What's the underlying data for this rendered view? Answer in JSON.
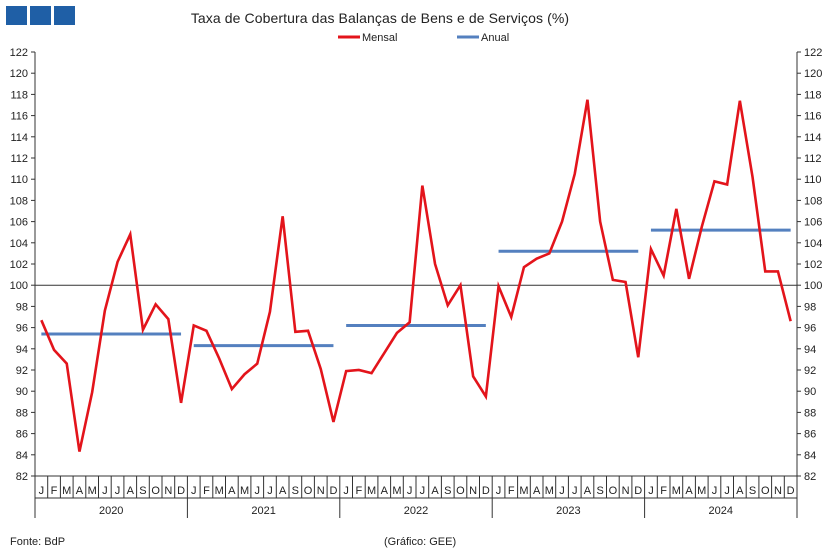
{
  "title": "Taxa de Cobertura das Balanças de Bens e de Serviços (%)",
  "source": "Fonte: BdP",
  "credit": "(Gráfico: GEE)",
  "logo_color": "#1f5fa6",
  "chart_data": {
    "type": "line",
    "title": "Taxa de Cobertura das Balanças de Bens e de Serviços (%)",
    "ylim": [
      82,
      122
    ],
    "y_ticks": [
      82,
      84,
      86,
      88,
      90,
      92,
      94,
      96,
      98,
      100,
      102,
      104,
      106,
      108,
      110,
      112,
      114,
      116,
      118,
      120,
      122
    ],
    "y_axes": "left and right",
    "reference_line": 100,
    "grid": false,
    "legend_position": "top-center",
    "years": [
      "2020",
      "2021",
      "2022",
      "2023",
      "2024"
    ],
    "month_labels": [
      "J",
      "F",
      "M",
      "A",
      "M",
      "J",
      "J",
      "A",
      "S",
      "O",
      "N",
      "D"
    ],
    "series": [
      {
        "name": "Mensal",
        "color": "#e3141b",
        "values": [
          96.7,
          93.9,
          92.6,
          84.3,
          89.9,
          97.6,
          102.2,
          104.8,
          95.8,
          98.2,
          96.8,
          88.9,
          96.2,
          95.7,
          93.1,
          90.2,
          91.6,
          92.6,
          97.5,
          106.5,
          95.6,
          95.7,
          92.1,
          87.1,
          91.9,
          92.0,
          91.7,
          93.6,
          95.5,
          96.5,
          109.4,
          102.0,
          98.1,
          100.0,
          91.4,
          89.5,
          99.9,
          97.0,
          101.7,
          102.5,
          103.0,
          106.0,
          110.5,
          117.5,
          106.0,
          100.5,
          100.3,
          93.2,
          103.4,
          100.9,
          107.2,
          100.6,
          105.5,
          109.8,
          109.5,
          117.4,
          110.2,
          101.3,
          101.3,
          96.6
        ]
      },
      {
        "name": "Anual",
        "color": "#5480bf",
        "values": [
          95.4,
          94.3,
          96.2,
          103.2,
          105.2
        ]
      }
    ]
  }
}
